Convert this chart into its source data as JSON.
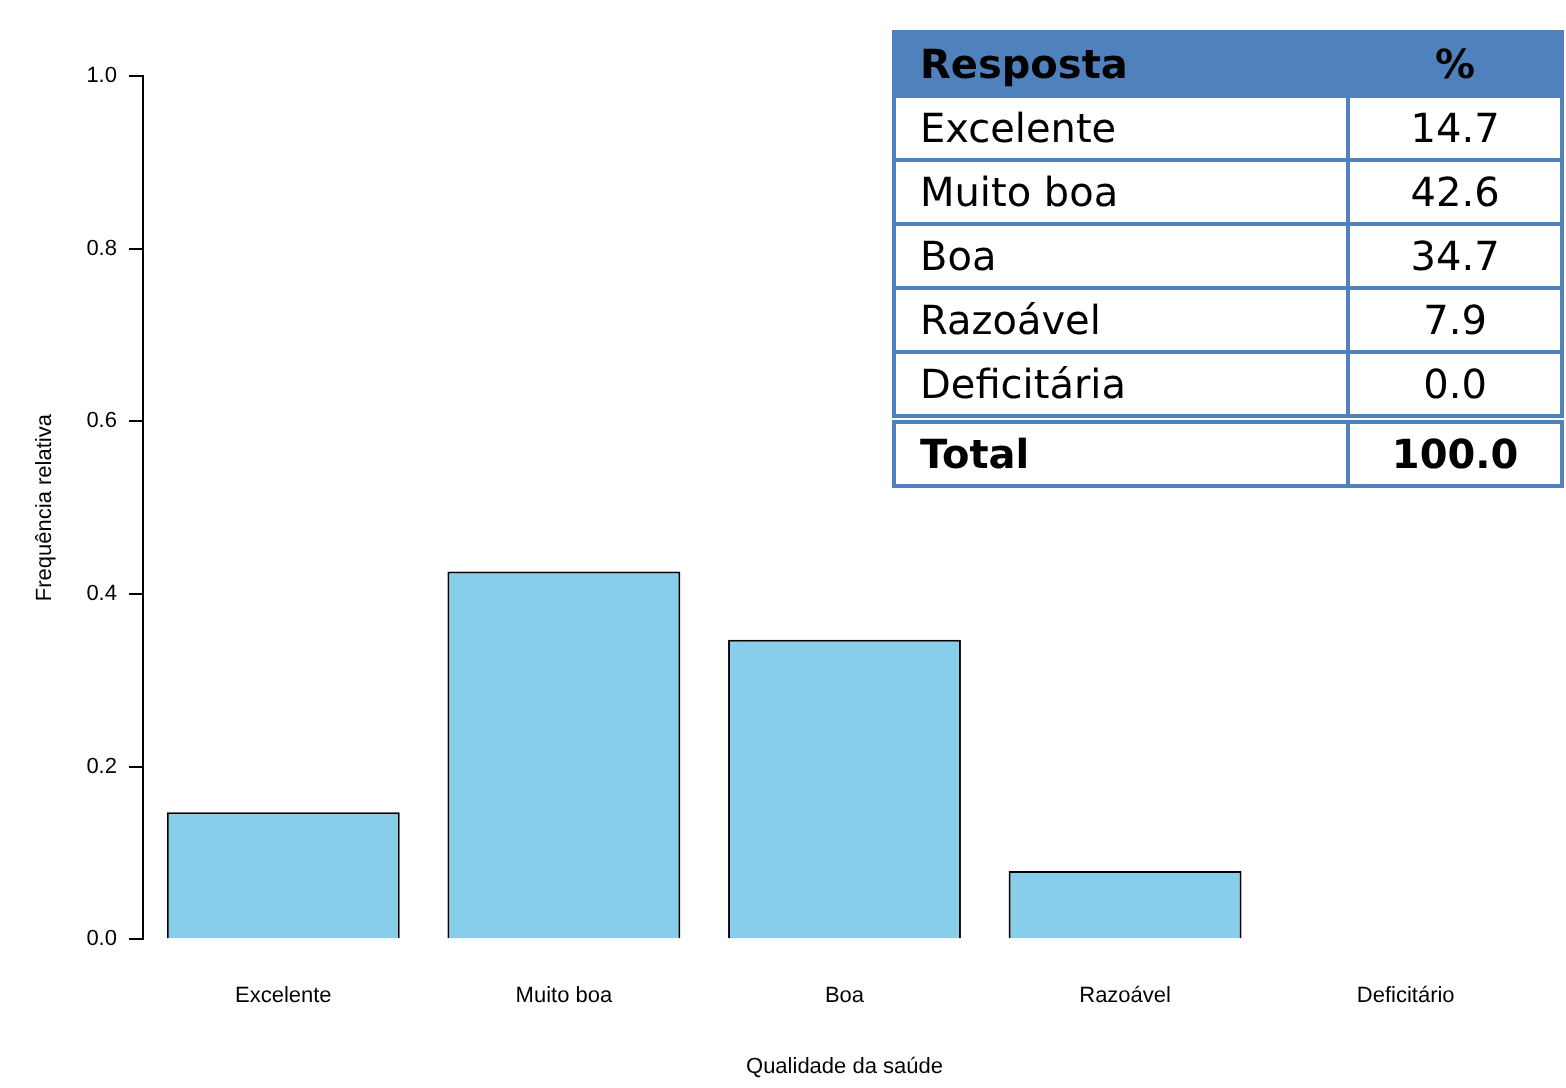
{
  "chart_data": [
    {
      "type": "bar",
      "xlabel": "Qualidade da saúde",
      "ylabel": "Frequência relativa",
      "categories": [
        "Excelente",
        "Muito boa",
        "Boa",
        "Razoável",
        "Deficitário"
      ],
      "values": [
        0.147,
        0.426,
        0.347,
        0.079,
        0.0
      ],
      "color": "#87ceeb",
      "ylim": [
        0,
        1
      ],
      "yticks": [
        {
          "value": 0,
          "label": "0.0"
        },
        {
          "value": 0.2,
          "label": "0.2"
        },
        {
          "value": 0.4,
          "label": "0.4"
        },
        {
          "value": 0.6,
          "label": "0.6"
        },
        {
          "value": 0.8,
          "label": "0.8"
        },
        {
          "value": 1,
          "label": "1.0"
        }
      ],
      "grid": false,
      "legend": false
    },
    {
      "type": "other",
      "annotations": [
        "Resposta",
        "%"
      ],
      "categories": [
        "Excelente",
        "Muito boa",
        "Boa",
        "Razoável",
        "Deficitária",
        "Total"
      ],
      "value_labels": [
        "14.7",
        "42.6",
        "34.7",
        "7.9",
        "0.0",
        "100.0"
      ]
    }
  ]
}
